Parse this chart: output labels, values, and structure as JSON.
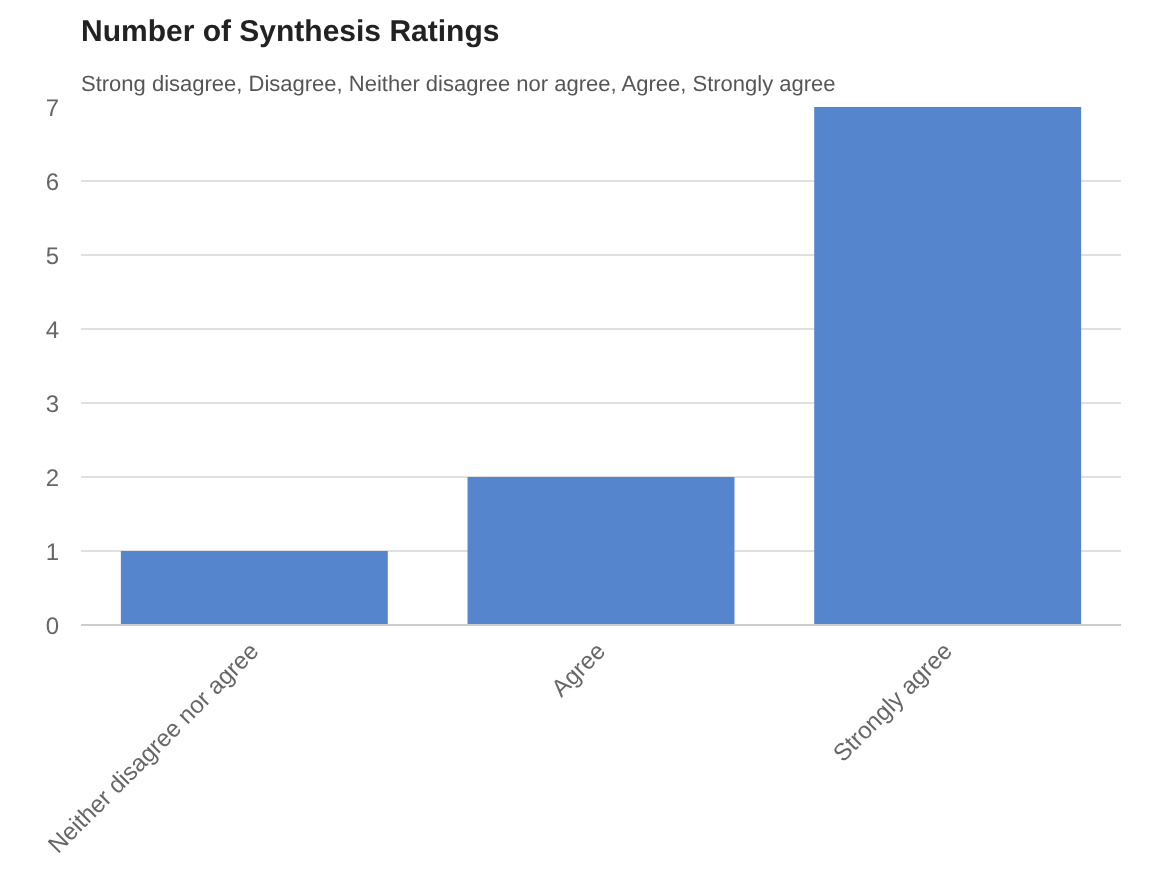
{
  "chart_data": {
    "type": "bar",
    "title": "Number of Synthesis Ratings",
    "subtitle": "Strong disagree, Disagree, Neither disagree nor agree, Agree, Strongly agree",
    "categories": [
      "Neither disagree nor agree",
      "Agree",
      "Strongly agree"
    ],
    "values": [
      1,
      2,
      7
    ],
    "color": "#5585cc",
    "ylim": [
      0,
      7
    ],
    "yticks": [
      0,
      1,
      2,
      3,
      4,
      5,
      6,
      7
    ],
    "grid": "y"
  }
}
